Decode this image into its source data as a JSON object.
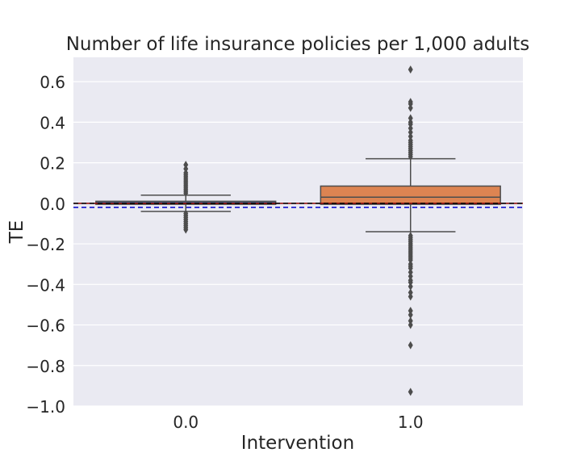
{
  "chart_data": {
    "type": "box",
    "title": "Number of life insurance policies per 1,000 adults",
    "xlabel": "Intervention",
    "ylabel": "TE",
    "categories": [
      "0.0",
      "1.0"
    ],
    "ylim": [
      -1.0,
      0.72
    ],
    "yticks": [
      -1.0,
      -0.8,
      -0.6,
      -0.4,
      -0.2,
      0.0,
      0.2,
      0.4,
      0.6
    ],
    "ytick_labels": [
      "−1.0",
      "−0.8",
      "−0.6",
      "−0.4",
      "−0.2",
      "0.0",
      "0.2",
      "0.4",
      "0.6"
    ],
    "grid": true,
    "boxes": [
      {
        "category": "0.0",
        "q1": -0.005,
        "median": 0.002,
        "q3": 0.01,
        "whisker_low": -0.04,
        "whisker_high": 0.04,
        "color": "#4c72b0",
        "outliers": [
          0.19,
          0.17,
          0.15,
          0.14,
          0.13,
          0.12,
          0.11,
          0.1,
          0.09,
          0.08,
          0.07,
          0.06,
          0.05,
          -0.05,
          -0.06,
          -0.07,
          -0.08,
          -0.09,
          -0.1,
          -0.11,
          -0.12,
          -0.13
        ]
      },
      {
        "category": "1.0",
        "q1": -0.005,
        "median": 0.03,
        "q3": 0.085,
        "whisker_low": -0.14,
        "whisker_high": 0.22,
        "color": "#dd8452",
        "outliers": [
          0.66,
          0.5,
          0.49,
          0.47,
          0.42,
          0.4,
          0.39,
          0.37,
          0.35,
          0.33,
          0.31,
          0.3,
          0.29,
          0.28,
          0.27,
          0.26,
          0.25,
          0.24,
          0.23,
          -0.16,
          -0.17,
          -0.18,
          -0.19,
          -0.2,
          -0.21,
          -0.22,
          -0.23,
          -0.24,
          -0.25,
          -0.26,
          -0.27,
          -0.28,
          -0.3,
          -0.31,
          -0.32,
          -0.34,
          -0.36,
          -0.38,
          -0.39,
          -0.41,
          -0.44,
          -0.46,
          -0.53,
          -0.55,
          -0.58,
          -0.6,
          -0.7,
          -0.93
        ]
      }
    ],
    "reference_lines": [
      {
        "y": 0.0,
        "color": "#8b0000",
        "style": "solid"
      },
      {
        "y": 0.0,
        "color": "#000000",
        "style": "dashed"
      },
      {
        "y": -0.02,
        "color": "#0000cc",
        "style": "dashed"
      }
    ],
    "colors": {
      "background": "#eaeaf2",
      "grid": "#ffffff",
      "line": "#4d4d4d"
    }
  }
}
